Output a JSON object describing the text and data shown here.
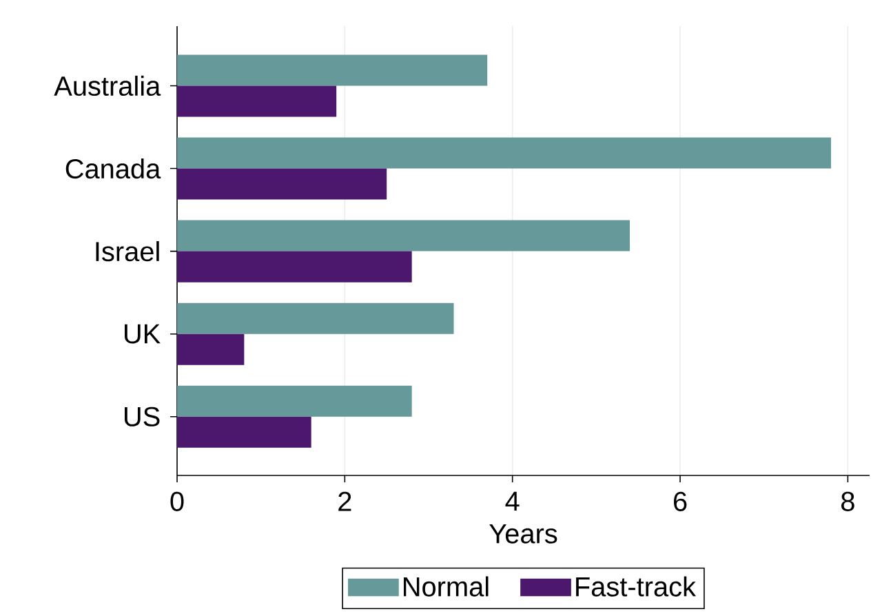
{
  "chart_data": {
    "type": "bar",
    "orientation": "horizontal",
    "xlabel": "Years",
    "categories": [
      "Australia",
      "Canada",
      "Israel",
      "UK",
      "US"
    ],
    "series": [
      {
        "name": "Normal",
        "color": "#669999",
        "values": [
          3.7,
          7.8,
          5.4,
          3.3,
          2.8
        ]
      },
      {
        "name": "Fast-track",
        "color": "#4b186e",
        "values": [
          1.9,
          2.5,
          2.8,
          0.8,
          1.6
        ]
      }
    ],
    "xlim": [
      0,
      8.26
    ],
    "xticks": [
      0,
      2,
      4,
      6,
      8
    ],
    "grid": "x",
    "legend": "bottom"
  }
}
